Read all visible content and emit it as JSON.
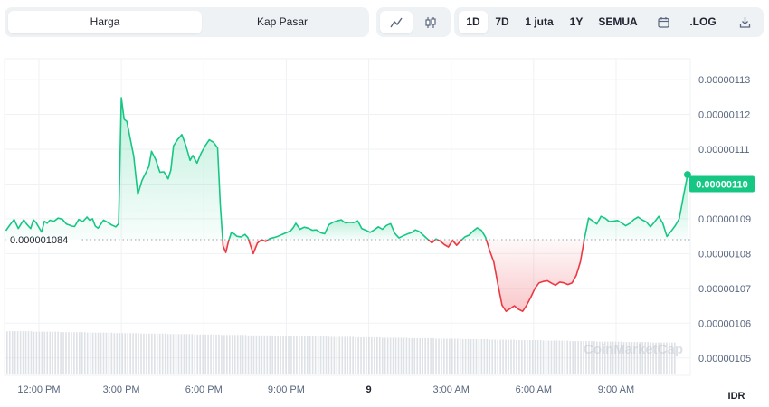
{
  "toolbar": {
    "metric_tabs": [
      "Harga",
      "Kap Pasar"
    ],
    "active_metric": "Harga",
    "style_icons": [
      "line-chart-icon",
      "candlestick-icon"
    ],
    "active_style": "line-chart-icon",
    "ranges": [
      "1D",
      "7D",
      "1 juta",
      "1Y",
      "SEMUA"
    ],
    "active_range": "1D",
    "calendar_icon": "calendar-icon",
    "log_label": ".LOG",
    "download_icon": "download-icon"
  },
  "colors": {
    "up": "#16c784",
    "down": "#ea3943",
    "grid": "#eff2f5",
    "text": "#58667e",
    "volume": "#d0d4da"
  },
  "chart_data": {
    "type": "line",
    "currency_label": "IDR",
    "watermark": "CoinMarketCap",
    "baseline_value": 1.084e-06,
    "baseline_label": "0.000001084",
    "current_value": 1.1e-06,
    "current_label": "0.00000110",
    "ylim": [
      1.045e-06,
      1.136e-06
    ],
    "y_ticks": [
      {
        "value": 1.13e-06,
        "label": "0.00000113"
      },
      {
        "value": 1.12e-06,
        "label": "0.00000112"
      },
      {
        "value": 1.11e-06,
        "label": "0.00000111"
      },
      {
        "value": 1.1e-06,
        "label": "0.00000110"
      },
      {
        "value": 1.09e-06,
        "label": "0.00000109"
      },
      {
        "value": 1.08e-06,
        "label": "0.00000108"
      },
      {
        "value": 1.07e-06,
        "label": "0.00000107"
      },
      {
        "value": 1.06e-06,
        "label": "0.00000106"
      },
      {
        "value": 1.05e-06,
        "label": "0.00000105"
      }
    ],
    "x_range_hours": [
      10.75,
      35.7
    ],
    "x_ticks": [
      {
        "hour": 12,
        "label": "12:00 PM"
      },
      {
        "hour": 15,
        "label": "3:00 PM"
      },
      {
        "hour": 18,
        "label": "6:00 PM"
      },
      {
        "hour": 21,
        "label": "9:00 PM"
      },
      {
        "hour": 24,
        "label": "9"
      },
      {
        "hour": 27,
        "label": "3:00 AM"
      },
      {
        "hour": 30,
        "label": "6:00 AM"
      },
      {
        "hour": 33,
        "label": "9:00 AM"
      }
    ],
    "series": [
      {
        "x_hours": [
          10.8,
          10.95,
          11.1,
          11.25,
          11.35,
          11.45,
          11.55,
          11.7,
          11.8,
          11.9,
          12.0,
          12.1,
          12.2,
          12.3,
          12.4,
          12.55,
          12.7,
          12.85,
          13.0,
          13.1,
          13.2,
          13.3,
          13.45,
          13.6,
          13.75,
          13.85,
          13.95,
          14.05,
          14.15,
          14.25,
          14.35,
          14.5,
          14.65,
          14.8,
          14.9,
          15.0,
          15.1,
          15.2,
          15.3,
          15.45,
          15.6,
          15.75,
          15.9,
          16.0,
          16.1,
          16.25,
          16.4,
          16.55,
          16.7,
          16.8,
          16.9,
          17.05,
          17.2,
          17.35,
          17.5,
          17.6,
          17.75,
          17.9,
          18.05,
          18.2,
          18.35,
          18.5,
          18.6,
          18.7,
          18.8,
          18.9,
          19.0,
          19.1,
          19.2,
          19.35,
          19.5,
          19.6,
          19.7,
          19.8,
          19.95,
          20.1,
          20.25,
          20.4,
          20.55,
          20.7,
          20.85,
          21.0,
          21.15,
          21.25,
          21.35,
          21.5,
          21.65,
          21.8,
          21.95,
          22.1,
          22.25,
          22.4,
          22.55,
          22.7,
          22.85,
          23.0,
          23.15,
          23.3,
          23.45,
          23.6,
          23.75,
          23.9,
          24.05,
          24.2,
          24.35,
          24.5,
          24.65,
          24.8,
          24.95,
          25.1,
          25.25,
          25.4,
          25.55,
          25.7,
          25.85,
          26.0,
          26.15,
          26.3,
          26.45,
          26.6,
          26.75,
          26.9,
          27.05,
          27.2,
          27.35,
          27.5,
          27.65,
          27.8,
          27.95,
          28.1,
          28.25,
          28.4,
          28.55,
          28.7,
          28.85,
          29.0,
          29.15,
          29.3,
          29.45,
          29.6,
          29.75,
          29.9,
          30.05,
          30.2,
          30.35,
          30.5,
          30.65,
          30.8,
          30.95,
          31.1,
          31.25,
          31.4,
          31.55,
          31.7,
          31.85,
          32.0,
          32.15,
          32.3,
          32.45,
          32.6,
          32.75,
          32.9,
          33.05,
          33.2,
          33.35,
          33.5,
          33.65,
          33.8,
          33.95,
          34.1,
          34.25,
          34.4,
          34.55,
          34.7,
          34.85,
          35.0,
          35.15,
          35.3,
          35.45,
          35.6
        ],
        "y_values": [
          1.0866,
          1.0883,
          1.0898,
          1.0872,
          1.0885,
          1.0897,
          1.0885,
          1.0872,
          1.0897,
          1.0889,
          1.0875,
          1.0862,
          1.0893,
          1.0887,
          1.0896,
          1.0893,
          1.0902,
          1.0899,
          1.0885,
          1.0882,
          1.0879,
          1.0878,
          1.0898,
          1.0892,
          1.0905,
          1.0895,
          1.09,
          1.0879,
          1.0873,
          1.0884,
          1.0896,
          1.089,
          1.0882,
          1.0877,
          1.0886,
          1.1248,
          1.1186,
          1.118,
          1.114,
          1.108,
          1.097,
          1.101,
          1.1034,
          1.105,
          1.1094,
          1.107,
          1.1034,
          1.1035,
          1.1015,
          1.104,
          1.111,
          1.1128,
          1.1142,
          1.111,
          1.1068,
          1.1082,
          1.106,
          1.1088,
          1.111,
          1.1127,
          1.112,
          1.1104,
          1.094,
          1.0822,
          1.0803,
          1.0836,
          1.086,
          1.0857,
          1.085,
          1.0848,
          1.0855,
          1.0846,
          1.0823,
          1.08,
          1.083,
          1.084,
          1.0835,
          1.0843,
          1.0846,
          1.085,
          1.0855,
          1.086,
          1.0865,
          1.0874,
          1.0887,
          1.087,
          1.0876,
          1.0873,
          1.0867,
          1.0868,
          1.086,
          1.0857,
          1.0883,
          1.089,
          1.0894,
          1.0897,
          1.0888,
          1.089,
          1.0889,
          1.0894,
          1.0872,
          1.0867,
          1.0861,
          1.0868,
          1.0877,
          1.087,
          1.0881,
          1.0886,
          1.0858,
          1.0845,
          1.0851,
          1.0856,
          1.086,
          1.0868,
          1.0863,
          1.0852,
          1.0841,
          1.0831,
          1.0842,
          1.0836,
          1.0826,
          1.0819,
          1.0838,
          1.0824,
          1.0837,
          1.0848,
          1.0853,
          1.0865,
          1.0874,
          1.0867,
          1.0847,
          1.0809,
          1.0776,
          1.0712,
          1.0652,
          1.0634,
          1.0642,
          1.065,
          1.064,
          1.0634,
          1.0652,
          1.0675,
          1.07,
          1.0716,
          1.072,
          1.0722,
          1.0715,
          1.0709,
          1.0718,
          1.0716,
          1.0711,
          1.0716,
          1.0737,
          1.0776,
          1.0843,
          1.0902,
          1.0894,
          1.0885,
          1.0907,
          1.0902,
          1.0892,
          1.0893,
          1.0895,
          1.0888,
          1.088,
          1.0887,
          1.0898,
          1.0905,
          1.0897,
          1.0891,
          1.0877,
          1.0891,
          1.0907,
          1.0887,
          1.0849,
          1.0864,
          1.088,
          1.09,
          1.0965,
          1.1027
        ]
      }
    ],
    "volume_note": "normalized relative volume bars along bottom strip",
    "volume_levels": [
      0.92,
      0.91,
      0.9,
      0.89,
      0.88,
      0.87,
      0.86,
      0.85,
      0.84,
      0.83,
      0.82,
      0.81,
      0.8,
      0.79,
      0.78,
      0.77,
      0.76,
      0.75,
      0.74,
      0.73,
      0.72,
      0.71,
      0.7,
      0.69,
      0.68
    ]
  }
}
